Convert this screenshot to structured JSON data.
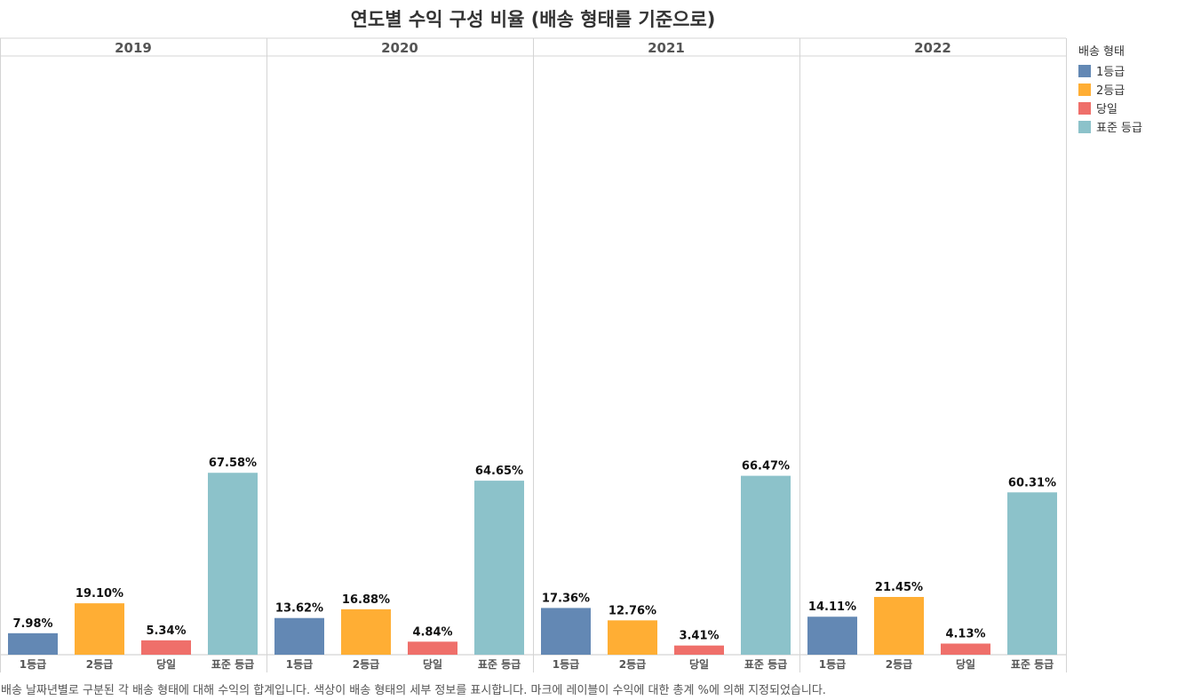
{
  "chart_data": {
    "type": "bar",
    "title": "연도별 수익 구성 비율 (배송 형태를 기준으로)",
    "panels": [
      "2019",
      "2020",
      "2021",
      "2022"
    ],
    "categories": [
      "1등급",
      "2등급",
      "당일",
      "표준 등급"
    ],
    "colors": [
      "#6388b4",
      "#ffae34",
      "#ef6f6a",
      "#8cc2ca"
    ],
    "values": [
      [
        7.98,
        19.1,
        5.34,
        67.58
      ],
      [
        13.62,
        16.88,
        4.84,
        64.65
      ],
      [
        17.36,
        12.76,
        3.41,
        66.47
      ],
      [
        14.11,
        21.45,
        4.13,
        60.31
      ]
    ],
    "value_labels": [
      [
        "7.98%",
        "19.10%",
        "5.34%",
        "67.58%"
      ],
      [
        "13.62%",
        "16.88%",
        "4.84%",
        "64.65%"
      ],
      [
        "17.36%",
        "12.76%",
        "3.41%",
        "66.47%"
      ],
      [
        "14.11%",
        "21.45%",
        "4.13%",
        "60.31%"
      ]
    ],
    "ylim": [
      0,
      70
    ],
    "grid": false,
    "legend": {
      "title": "배송 형태",
      "placement": "right",
      "items": [
        "1등급",
        "2등급",
        "당일",
        "표준 등급"
      ]
    }
  },
  "caption": "배송 날짜년별로 구분된 각 배송 형태에 대해 수익의 합계입니다. 색상이 배송 형태의 세부 정보를 표시합니다. 마크에 레이블이 수익에 대한 총계 %에 의해 지정되었습니다."
}
